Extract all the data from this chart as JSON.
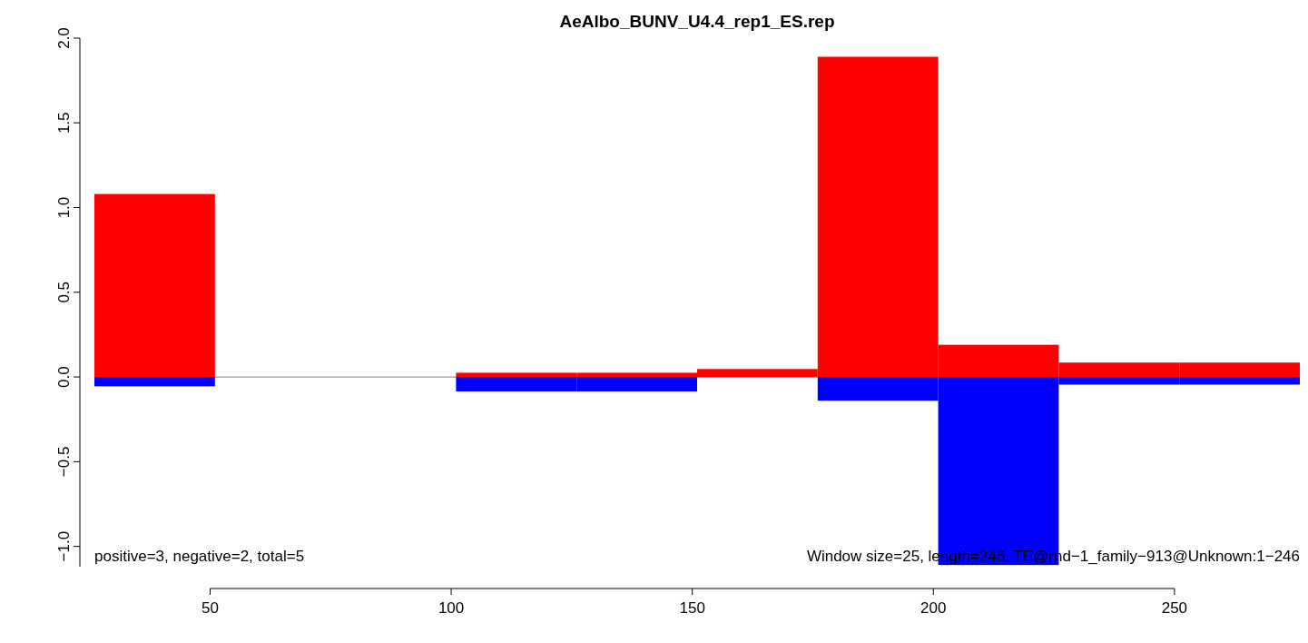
{
  "chart_data": {
    "type": "bar",
    "title": "AeAlbo_BUNV_U4.4_rep1_ES.rep",
    "x": [
      38.5,
      63.5,
      88.5,
      113.5,
      138.5,
      163.5,
      188.5,
      213.5,
      238.5,
      263.5
    ],
    "series": [
      {
        "color": "#ff0000",
        "values": [
          1.08,
          null,
          null,
          0.025,
          0.025,
          0.047,
          1.89,
          0.19,
          0.085,
          0.085
        ]
      },
      {
        "color": "#0000ff",
        "values": [
          -0.055,
          null,
          null,
          -0.085,
          -0.085,
          null,
          -0.14,
          -1.11,
          -0.045,
          -0.045
        ]
      }
    ],
    "xlim": [
      26,
      276
    ],
    "xticks": [
      50,
      100,
      150,
      200,
      250
    ],
    "ylim": [
      -1.12,
      2.0
    ],
    "stacked": true,
    "yticks": [
      {
        "value": -1,
        "label": "−1.0"
      },
      {
        "value": -0.5,
        "label": "−0.5"
      },
      {
        "value": 0,
        "label": "0.0"
      },
      {
        "value": 0.5,
        "label": "0.5"
      },
      {
        "value": 1,
        "label": "1.0"
      },
      {
        "value": 1.5,
        "label": "1.5"
      },
      {
        "value": 2,
        "label": "2.0"
      }
    ],
    "ref_lines": [
      {
        "axis": "y",
        "value": 0,
        "color": "#999999"
      }
    ],
    "annotations": [
      "positive=3, negative=2, total=5",
      "Window size=25, length=246, TE@rnd−1_family−913@Unknown:1−246"
    ]
  }
}
